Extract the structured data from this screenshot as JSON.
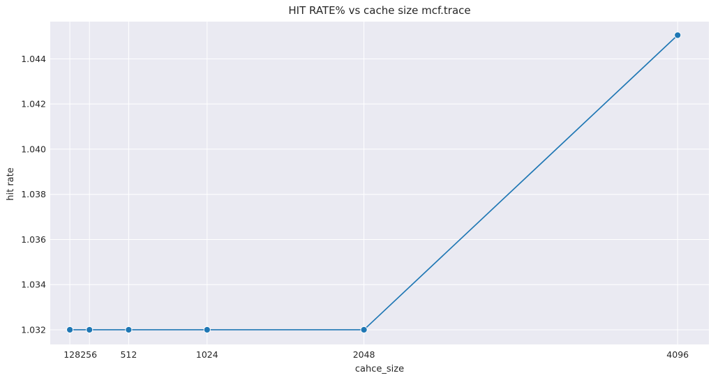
{
  "chart_data": {
    "type": "line",
    "title": "HIT RATE% vs cache size mcf.trace",
    "xlabel": "cahce_size",
    "ylabel": "hit rate",
    "x": [
      128,
      256,
      512,
      1024,
      2048,
      4096
    ],
    "x_tick_labels": [
      "128",
      "256",
      "512",
      "1024",
      "2048",
      "4096"
    ],
    "xlim": [
      0,
      4300
    ],
    "series": [
      {
        "values": [
          1.032,
          1.032,
          1.032,
          1.032,
          1.032,
          1.04505
        ],
        "color": "#1f77b4"
      }
    ],
    "ylim": [
      1.03135,
      1.04565
    ],
    "y_ticks": [
      1.032,
      1.034,
      1.036,
      1.038,
      1.04,
      1.042,
      1.044
    ],
    "y_tick_labels": [
      "1.032",
      "1.034",
      "1.036",
      "1.038",
      "1.040",
      "1.042",
      "1.044"
    ],
    "grid": true,
    "markers": true,
    "background": "#eaeaf2"
  }
}
